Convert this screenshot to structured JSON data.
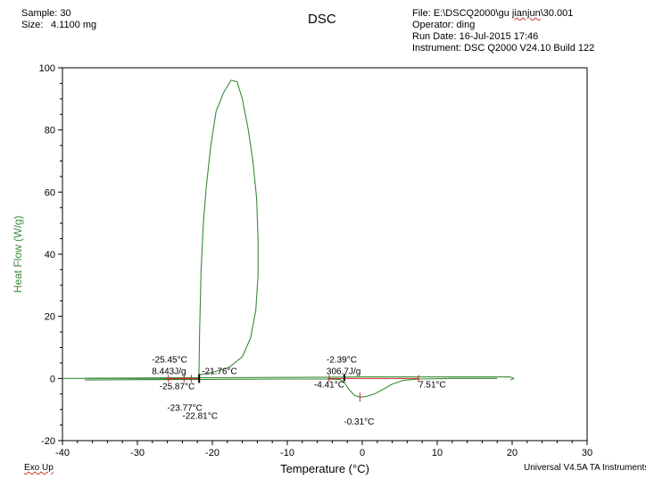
{
  "header": {
    "sample_label": "Sample: 30",
    "size_label": "Size:",
    "size_value": "4.1100 mg",
    "title": "DSC",
    "file": "File: E:\\DSCQ2000\\gu jianjun\\30.001",
    "operator": "Operator: ding",
    "run_date": "Run Date: 16-Jul-2015 17:46",
    "instrument": "Instrument: DSC Q2000 V24.10  Build 122"
  },
  "footer": {
    "exo_up": "Exo Up",
    "software": "Universal V4.5A TA Instruments"
  },
  "colors": {
    "trace": "#3a8a3a",
    "marker": "#cc2222",
    "axis": "#000000"
  },
  "chart_data": {
    "type": "line",
    "title": "DSC",
    "xlabel": "Temperature (°C)",
    "ylabel": "Heat Flow (W/g)",
    "xlim": [
      -40,
      30
    ],
    "ylim": [
      -20,
      100
    ],
    "x_ticks": [
      -40,
      -30,
      -20,
      -10,
      0,
      10,
      20,
      30
    ],
    "y_ticks": [
      -20,
      0,
      20,
      40,
      60,
      80,
      100
    ],
    "grid": false,
    "series": [
      {
        "values": [
          [
            -40,
            0
          ],
          [
            -35,
            0
          ],
          [
            -30,
            0
          ],
          [
            -27,
            0
          ],
          [
            -25.9,
            -0.1
          ],
          [
            -24,
            -0.2
          ],
          [
            -22.5,
            -0.3
          ],
          [
            -21.8,
            0
          ],
          [
            -21.7,
            15
          ],
          [
            -21.5,
            35
          ],
          [
            -21.2,
            50
          ],
          [
            -20.8,
            62
          ],
          [
            -20.2,
            75
          ],
          [
            -19.5,
            86
          ],
          [
            -18.5,
            92
          ],
          [
            -17.5,
            96
          ],
          [
            -16.7,
            95.5
          ],
          [
            -16.0,
            90
          ],
          [
            -15.2,
            80
          ],
          [
            -14.6,
            70
          ],
          [
            -14.1,
            58
          ],
          [
            -13.9,
            45
          ],
          [
            -13.9,
            33
          ],
          [
            -14.2,
            22
          ],
          [
            -14.9,
            13
          ],
          [
            -16.0,
            7
          ],
          [
            -17.8,
            3.5
          ],
          [
            -20.0,
            2
          ],
          [
            -21.7,
            1.2
          ]
        ]
      },
      {
        "values": [
          [
            -37,
            -0.5
          ],
          [
            -30,
            -0.4
          ],
          [
            -20,
            -0.3
          ],
          [
            -10,
            -0.2
          ],
          [
            -5,
            -0.2
          ],
          [
            -3,
            -0.3
          ],
          [
            -2.4,
            -1.2
          ],
          [
            -1.8,
            -3.5
          ],
          [
            -1.0,
            -5.5
          ],
          [
            -0.3,
            -6.0
          ],
          [
            0.5,
            -5.8
          ],
          [
            1.6,
            -5.0
          ],
          [
            2.8,
            -3.5
          ],
          [
            4.0,
            -1.8
          ],
          [
            5.5,
            -0.6
          ],
          [
            7.5,
            -0.2
          ],
          [
            12,
            0
          ],
          [
            18,
            0
          ]
        ]
      },
      {
        "values": [
          [
            -37,
            0.1
          ],
          [
            -25,
            0.2
          ],
          [
            -15,
            0.3
          ],
          [
            -5,
            0.4
          ],
          [
            0,
            0.5
          ],
          [
            10,
            0.5
          ],
          [
            19.7,
            0.5
          ],
          [
            20.2,
            0
          ],
          [
            19.8,
            -0.5
          ]
        ]
      }
    ],
    "annotations": [
      {
        "text": "-25.45°C",
        "x": -25.45,
        "y": 0
      },
      {
        "text": "8.443J/g",
        "x": -25.45,
        "y": 0
      },
      {
        "text": "-21.76°C",
        "x": -21.76,
        "y": 0
      },
      {
        "text": "-25.87°C",
        "x": -25.87,
        "y": 0
      },
      {
        "text": "-23.77°C",
        "x": -23.77,
        "y": 0
      },
      {
        "text": "-22.81°C",
        "x": -22.81,
        "y": 0
      },
      {
        "text": "-2.39°C",
        "x": -2.39,
        "y": 0
      },
      {
        "text": "306.7J/g",
        "x": -2.39,
        "y": 0
      },
      {
        "text": "-4.41°C",
        "x": -4.41,
        "y": 0
      },
      {
        "text": "7.51°C",
        "x": 7.51,
        "y": 0
      },
      {
        "text": "-0.31°C",
        "x": -0.31,
        "y": -6
      }
    ]
  }
}
